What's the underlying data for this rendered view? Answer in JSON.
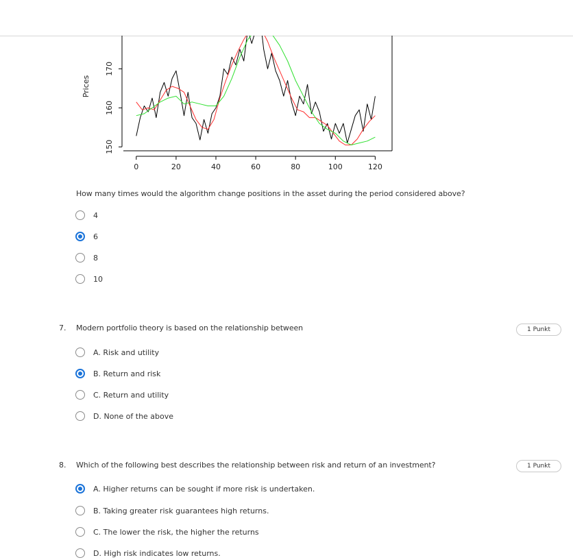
{
  "chart_data": {
    "type": "line",
    "ylabel": "Prices",
    "xlabel": "",
    "x_ticks": [
      0,
      20,
      40,
      60,
      80,
      100,
      120
    ],
    "y_ticks": [
      150,
      160,
      170
    ],
    "xlim": [
      -2,
      124
    ],
    "ylim": [
      149,
      178.5
    ],
    "series": [
      {
        "color": "#000000",
        "x": [
          0,
          2,
          4,
          6,
          8,
          10,
          12,
          14,
          16,
          18,
          20,
          22,
          24,
          26,
          28,
          30,
          32,
          34,
          36,
          38,
          40,
          42,
          44,
          46,
          48,
          50,
          52,
          54,
          56,
          58,
          60,
          62,
          64,
          66,
          68,
          70,
          72,
          74,
          76,
          78,
          80,
          82,
          84,
          86,
          88,
          90,
          92,
          94,
          96,
          98,
          100,
          102,
          104,
          106,
          108,
          110,
          112,
          114,
          116,
          118,
          120
        ],
        "y": [
          152.8,
          157.5,
          160.5,
          159,
          162.5,
          157.5,
          164,
          166.5,
          163,
          167.5,
          169.5,
          164,
          158,
          164,
          157.5,
          156,
          151.8,
          157,
          153.5,
          158.5,
          160,
          163,
          170,
          168.5,
          173,
          171,
          175,
          172,
          180,
          176.5,
          180,
          184,
          175,
          170,
          174,
          169.5,
          167,
          163,
          167,
          161.5,
          158,
          163,
          161,
          166,
          158.5,
          161.5,
          159,
          154,
          156,
          152,
          156,
          153.5,
          156,
          151,
          154.5,
          158,
          159.5,
          154,
          161,
          157,
          163
        ]
      },
      {
        "color": "#ff2d2d",
        "x": [
          0,
          3,
          6,
          9,
          12,
          15,
          18,
          21,
          24,
          27,
          30,
          33,
          36,
          39,
          42,
          45,
          48,
          51,
          54,
          57,
          60,
          63,
          66,
          69,
          72,
          75,
          78,
          81,
          84,
          87,
          90,
          93,
          96,
          99,
          102,
          105,
          108,
          111,
          114,
          117,
          120
        ],
        "y": [
          161.5,
          159.5,
          160,
          159.5,
          162,
          164.5,
          165.5,
          165,
          164,
          160.5,
          157,
          155,
          154.5,
          157,
          162.5,
          167,
          171,
          174.5,
          177.5,
          180,
          181.5,
          180,
          177,
          173,
          169.5,
          166,
          162.5,
          159.5,
          159,
          157.5,
          157.5,
          156.5,
          155.5,
          153.5,
          151.5,
          150.5,
          150.5,
          152,
          154.5,
          156.5,
          158
        ]
      },
      {
        "color": "#2fe02f",
        "x": [
          0,
          4,
          8,
          12,
          16,
          20,
          24,
          28,
          32,
          36,
          40,
          44,
          48,
          52,
          56,
          60,
          64,
          68,
          72,
          76,
          80,
          84,
          88,
          92,
          96,
          100,
          104,
          108,
          112,
          116,
          120
        ],
        "y": [
          158,
          158.5,
          160,
          161.5,
          162.5,
          163,
          161,
          161.5,
          161,
          160.5,
          160.5,
          163,
          167.5,
          173,
          177.5,
          180,
          180,
          179,
          176,
          172,
          167,
          163,
          159,
          156,
          154.5,
          153.5,
          151.5,
          150.5,
          151,
          151.5,
          152.5
        ]
      }
    ]
  },
  "prev_question": {
    "text": "How many times would the algorithm change positions in the asset during the period considered above?",
    "options": [
      "4",
      "6",
      "8",
      "10"
    ],
    "selected_index": 1
  },
  "question7": {
    "number": "7.",
    "text": "Modern portfolio theory is based on the relationship between",
    "points": "1 Punkt",
    "options": [
      "A. Risk and utility",
      "B. Return and risk",
      "C. Return and utility",
      "D. None of the above"
    ],
    "selected_index": 1
  },
  "question8": {
    "number": "8.",
    "text": "Which of the following best describes the relationship between risk and return of an investment?",
    "points": "1 Punkt",
    "options": [
      "A. Higher returns can be sought if more risk is undertaken.",
      "B. Taking greater risk guarantees high returns.",
      "C. The lower the risk, the higher the returns",
      "D. High risk indicates low returns."
    ],
    "selected_index": 0
  },
  "colors": {
    "accent": "#1a73d9",
    "text": "#333333",
    "price_line": "#000000",
    "short_ma": "#ff2d2d",
    "long_ma": "#2fe02f"
  }
}
